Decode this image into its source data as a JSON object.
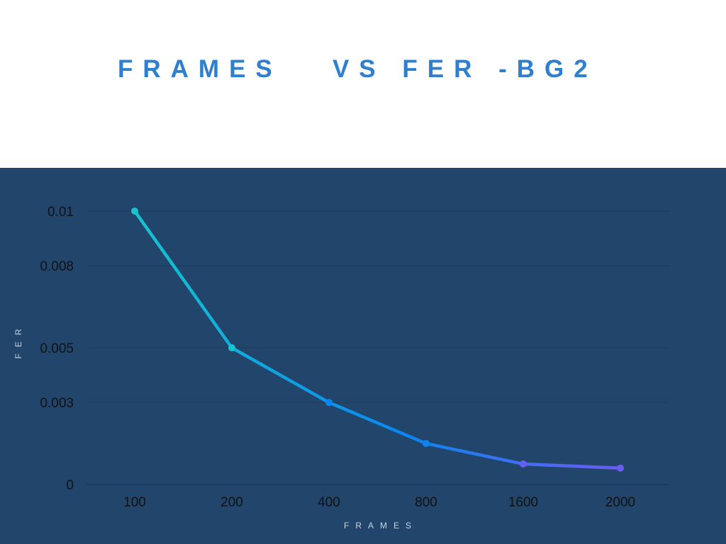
{
  "chart_data": {
    "type": "line",
    "title": "FRAMES   VS FER -BG2",
    "xlabel": "FRAMES",
    "ylabel": "FER",
    "categories": [
      "100",
      "200",
      "400",
      "800",
      "1600",
      "2000"
    ],
    "series": [
      {
        "values": [
          0.01,
          0.005,
          0.003,
          0.0015,
          0.00075,
          0.0006
        ]
      }
    ],
    "yticks": [
      0,
      0.003,
      0.005,
      0.008,
      0.01
    ],
    "ytick_labels": [
      "0",
      "0.003",
      "0.005",
      "0.008",
      "0.01"
    ],
    "ylim": [
      0,
      0.01
    ],
    "grid": true,
    "legend": "none",
    "colors": {
      "panel_background": "#22466b",
      "title": "#2f7fd0",
      "line_start": "#17c3cf",
      "line_mid": "#0a86f0",
      "line_end": "#6a5cf0",
      "gridline": "#1b3a5a",
      "axis_title": "#c9d3e0"
    }
  }
}
